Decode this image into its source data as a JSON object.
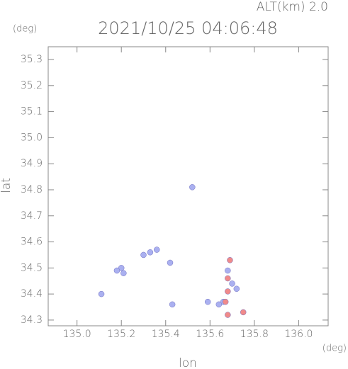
{
  "chart_data": {
    "type": "scatter",
    "title": "2021/10/25 04:06:48",
    "subtitle": "ALT(km) 2.0",
    "y_unit": "(deg)",
    "x_unit": "(deg)",
    "xlabel": "lon",
    "ylabel": "lat",
    "xlim": [
      134.87,
      136.133
    ],
    "ylim": [
      34.278,
      35.349
    ],
    "xticks": [
      {
        "value": 135.0,
        "label": "135.0"
      },
      135.2,
      135.4,
      135.6,
      135.8,
      {
        "value": 136.0,
        "label": "136.0"
      }
    ],
    "yticks": [
      34.3,
      34.4,
      34.5,
      34.6,
      34.7,
      34.8,
      34.9,
      {
        "value": 35.0,
        "label": "35.0"
      },
      35.1,
      35.2,
      35.3
    ],
    "series": [
      {
        "color": "#aab0f0",
        "x": [
          135.52,
          135.2,
          135.21,
          135.18,
          135.33,
          135.36,
          135.3,
          135.42,
          135.11,
          135.68,
          135.7,
          135.72,
          135.66,
          135.64,
          135.59,
          135.43
        ],
        "values": [
          34.81,
          34.5,
          34.48,
          34.49,
          34.56,
          34.57,
          34.55,
          34.52,
          34.4,
          34.49,
          34.44,
          34.42,
          34.37,
          34.36,
          34.37,
          34.36
        ]
      },
      {
        "color": "#f08a8a",
        "x": [
          135.68,
          135.68,
          135.68,
          135.75,
          135.69,
          135.67
        ],
        "values": [
          34.46,
          34.41,
          34.32,
          34.33,
          34.53,
          34.37
        ]
      }
    ]
  }
}
